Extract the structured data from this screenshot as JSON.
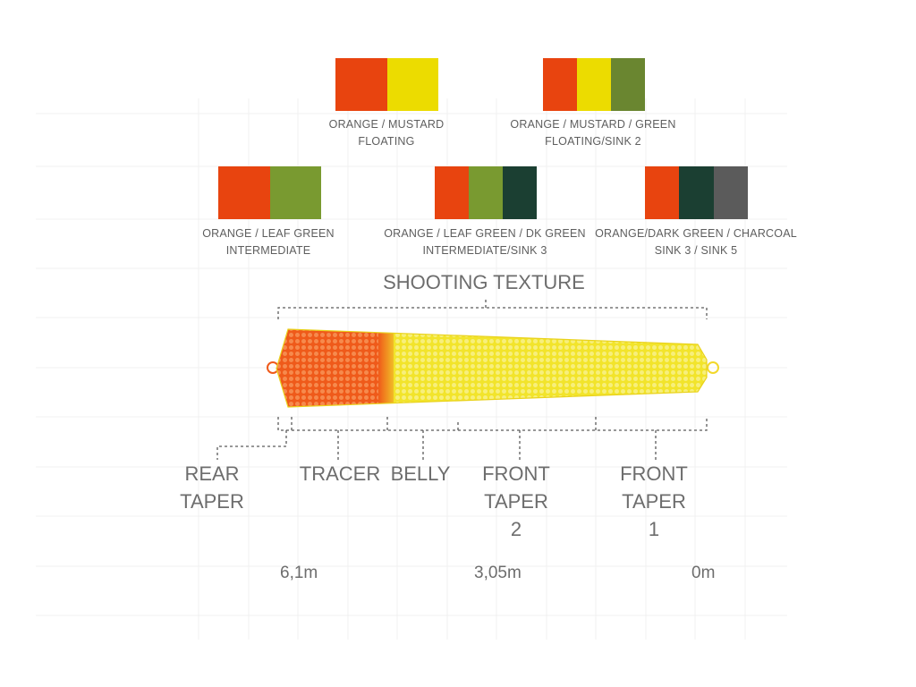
{
  "colors": {
    "orange": "#e8440f",
    "mustard": "#ecdc00",
    "green": "#6a8630",
    "leaf_green": "#799a30",
    "dk_green": "#1b3f32",
    "charcoal": "#5b5b5b",
    "line_orange": "#ef5a1a",
    "line_yellow": "#f2e42b"
  },
  "swatches": [
    {
      "id": "orange-mustard",
      "colors": [
        "#e8440f",
        "#ecdc00"
      ],
      "line1": "ORANGE / MUSTARD",
      "line2": "FLOATING"
    },
    {
      "id": "orange-mustard-green",
      "colors": [
        "#e8440f",
        "#ecdc00",
        "#6a8630"
      ],
      "line1": "ORANGE / MUSTARD / GREEN",
      "line2": "FLOATING/SINK 2"
    },
    {
      "id": "orange-leaf-green",
      "colors": [
        "#e8440f",
        "#799a30"
      ],
      "line1": "ORANGE / LEAF GREEN",
      "line2": "INTERMEDIATE"
    },
    {
      "id": "orange-leaf-dkgreen",
      "colors": [
        "#e8440f",
        "#799a30",
        "#1b3f32"
      ],
      "line1": "ORANGE / LEAF GREEN / DK GREEN",
      "line2": "INTERMEDIATE/SINK 3"
    },
    {
      "id": "orange-darkgreen-charcoal",
      "colors": [
        "#e8440f",
        "#1b3f32",
        "#5b5b5b"
      ],
      "line1": "ORANGE/DARK GREEN / CHARCOAL",
      "line2": "SINK 3 / SINK 5"
    }
  ],
  "shooting_texture": "SHOOTING TEXTURE",
  "sections": [
    {
      "id": "rear-taper",
      "lines": [
        "REAR",
        "TAPER"
      ]
    },
    {
      "id": "tracer",
      "lines": [
        "TRACER"
      ]
    },
    {
      "id": "belly",
      "lines": [
        "BELLY"
      ]
    },
    {
      "id": "front-taper-2",
      "lines": [
        "FRONT",
        "TAPER",
        "2"
      ]
    },
    {
      "id": "front-taper-1",
      "lines": [
        "FRONT",
        "TAPER",
        "1"
      ]
    }
  ],
  "distances": [
    "6,1m",
    "3,05m",
    "0m"
  ]
}
